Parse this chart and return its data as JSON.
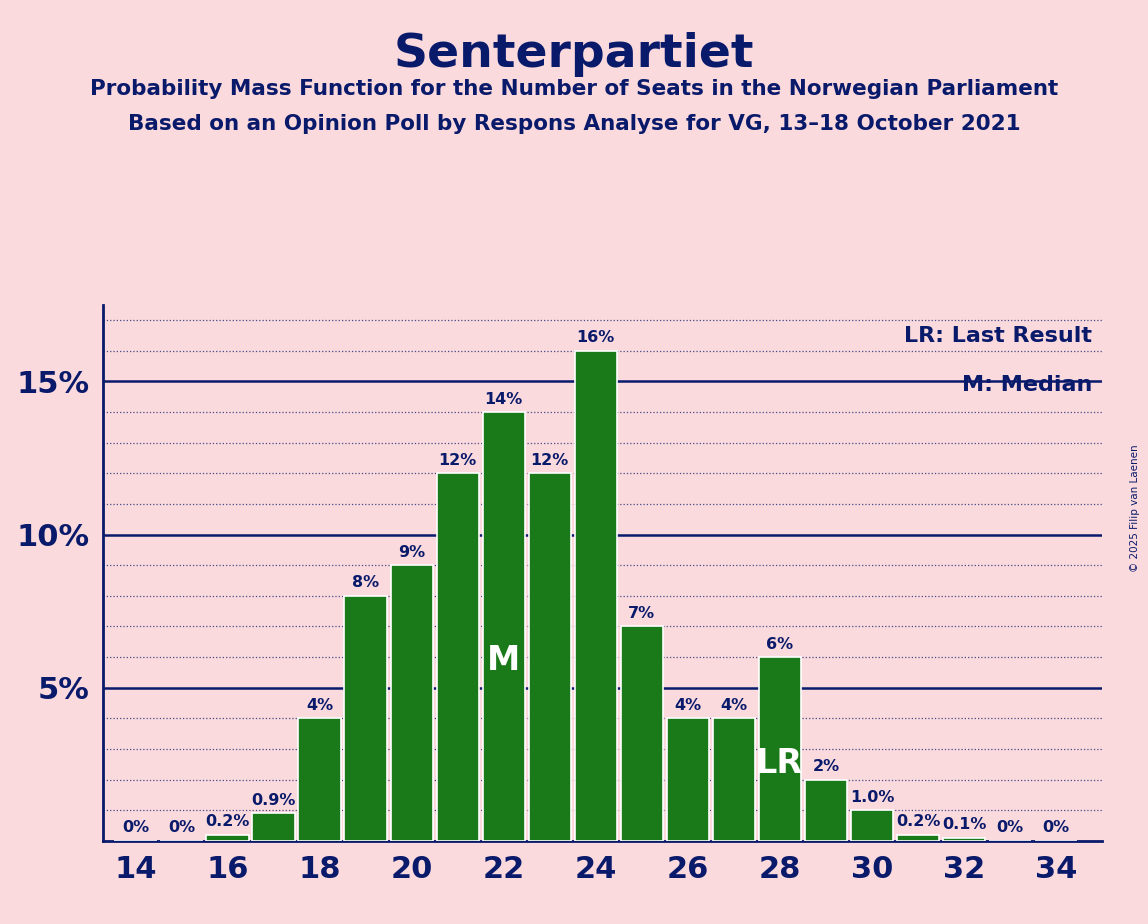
{
  "title": "Senterpartiet",
  "subtitle1": "Probability Mass Function for the Number of Seats in the Norwegian Parliament",
  "subtitle2": "Based on an Opinion Poll by Respons Analyse for VG, 13–18 October 2021",
  "seats": [
    14,
    15,
    16,
    17,
    18,
    19,
    20,
    21,
    22,
    23,
    24,
    25,
    26,
    27,
    28,
    29,
    30,
    31,
    32,
    33,
    34
  ],
  "probabilities": [
    0.0,
    0.0,
    0.002,
    0.009,
    0.04,
    0.08,
    0.09,
    0.12,
    0.14,
    0.12,
    0.16,
    0.07,
    0.04,
    0.04,
    0.06,
    0.02,
    0.01,
    0.002,
    0.001,
    0.0,
    0.0
  ],
  "labels": [
    "0%",
    "0%",
    "0.2%",
    "0.9%",
    "4%",
    "8%",
    "9%",
    "12%",
    "14%",
    "12%",
    "16%",
    "7%",
    "4%",
    "4%",
    "6%",
    "2%",
    "1.0%",
    "0.2%",
    "0.1%",
    "0%",
    "0%"
  ],
  "bar_color": "#1a7a1a",
  "bar_edge_color": "#ffffff",
  "background_color": "#fadadd",
  "text_color": "#0a1a6b",
  "median_seat": 22,
  "last_result_seat": 28,
  "ylim": [
    0,
    0.175
  ],
  "xticks": [
    14,
    16,
    18,
    20,
    22,
    24,
    26,
    28,
    30,
    32,
    34
  ],
  "copyright": "© 2025 Filip van Laenen",
  "lr_label": "LR: Last Result",
  "m_label": "M: Median"
}
